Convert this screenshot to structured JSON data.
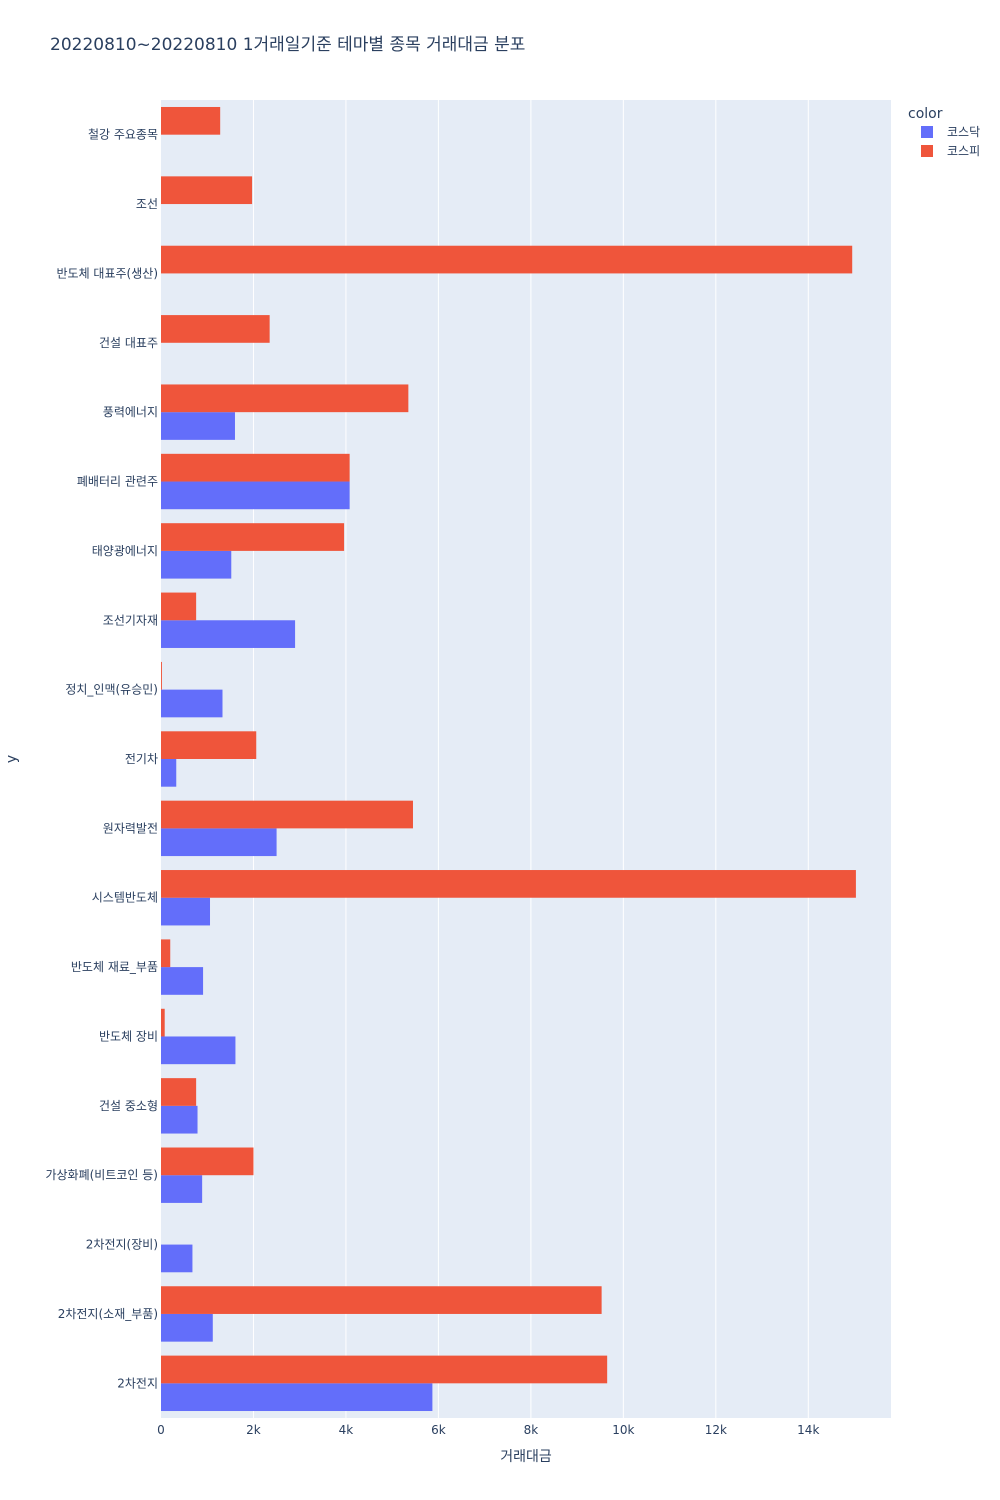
{
  "chart_data": {
    "type": "bar",
    "orientation": "horizontal",
    "barmode": "group",
    "title": "20220810~20220810 1거래일기준 테마별 종목 거래대금 분포",
    "xlabel": "거래대금",
    "ylabel": "y",
    "xlim": [
      0,
      15789
    ],
    "xticks": [
      {
        "value": 0,
        "label": "0"
      },
      {
        "value": 2000,
        "label": "2k"
      },
      {
        "value": 4000,
        "label": "4k"
      },
      {
        "value": 6000,
        "label": "6k"
      },
      {
        "value": 8000,
        "label": "8k"
      },
      {
        "value": 10000,
        "label": "10k"
      },
      {
        "value": 12000,
        "label": "12k"
      },
      {
        "value": 14000,
        "label": "14k"
      }
    ],
    "legend": {
      "title": "color",
      "position": "top-right"
    },
    "categories": [
      "철강 주요종목",
      "조선",
      "반도체 대표주(생산)",
      "건설 대표주",
      "풍력에너지",
      "폐배터리 관련주",
      "태양광에너지",
      "조선기자재",
      "정치_인맥(유승민)",
      "전기차",
      "원자력발전",
      "시스템반도체",
      "반도체 재료_부품",
      "반도체 장비",
      "건설 중소형",
      "가상화폐(비트코인 등)",
      "2차전지(장비)",
      "2차전지(소재_부품)",
      "2차전지"
    ],
    "series": [
      {
        "name": "코스닥",
        "color": "#636efa",
        "values": [
          0,
          0,
          0,
          0,
          1600,
          4080,
          1520,
          2900,
          1330,
          330,
          2500,
          1060,
          910,
          1610,
          790,
          890,
          680,
          1120,
          5870
        ]
      },
      {
        "name": "코스피",
        "color": "#ef553b",
        "values": [
          1280,
          1970,
          14950,
          2350,
          5350,
          4080,
          3960,
          760,
          20,
          2060,
          5450,
          15030,
          200,
          80,
          760,
          2000,
          0,
          9530,
          9650
        ]
      }
    ]
  },
  "colors": {
    "plot_bg": "#e5ecf6",
    "grid": "#ffffff",
    "text": "#2a3f5f"
  }
}
